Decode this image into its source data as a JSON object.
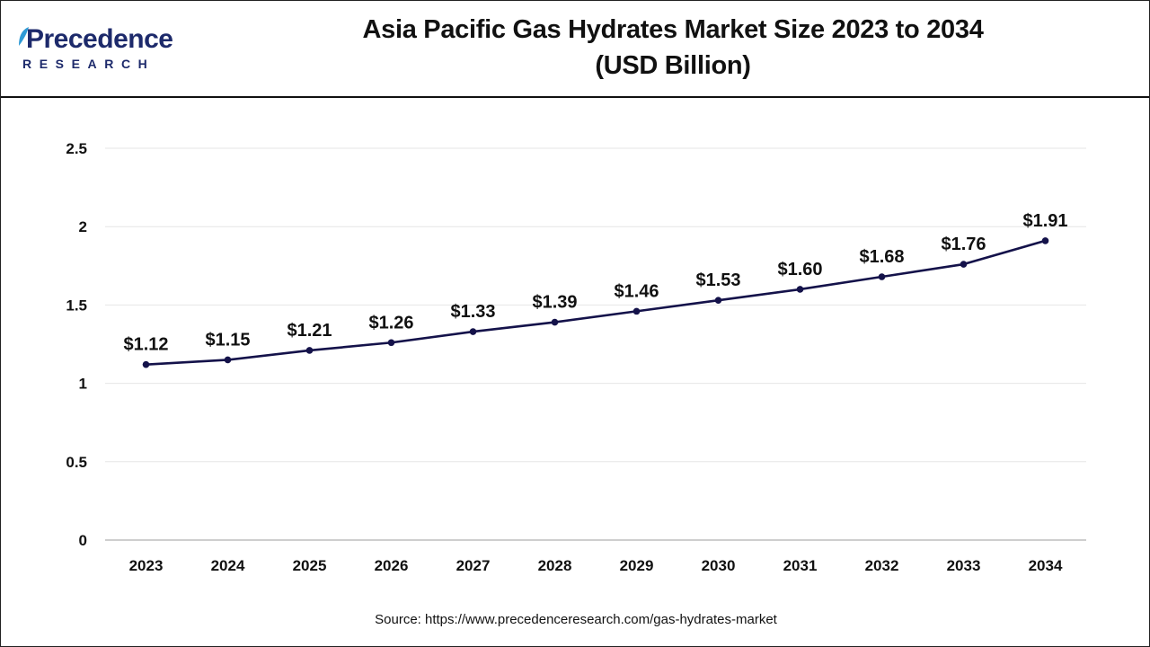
{
  "header": {
    "logo_main": "Precedence",
    "logo_sub": "RESEARCH",
    "title_line1": "Asia Pacific Gas Hydrates Market Size 2023 to 2034",
    "title_line2": "(USD Billion)"
  },
  "source": "Source: https://www.precedenceresearch.com/gas-hydrates-market",
  "colors": {
    "line": "#14124a",
    "brand": "#1d2a6b",
    "leaf": "#2e9ad6"
  },
  "chart_data": {
    "type": "line",
    "x": [
      "2023",
      "2024",
      "2025",
      "2026",
      "2027",
      "2028",
      "2029",
      "2030",
      "2031",
      "2032",
      "2033",
      "2034"
    ],
    "values": [
      1.12,
      1.15,
      1.21,
      1.26,
      1.33,
      1.39,
      1.46,
      1.53,
      1.6,
      1.68,
      1.76,
      1.91
    ],
    "data_labels": [
      "$1.12",
      "$1.15",
      "$1.21",
      "$1.26",
      "$1.33",
      "$1.39",
      "$1.46",
      "$1.53",
      "$1.60",
      "$1.68",
      "$1.76",
      "$1.91"
    ],
    "yticks": [
      "0",
      "0.5",
      "1",
      "1.5",
      "2",
      "2.5"
    ],
    "ylim": [
      0,
      2.5
    ],
    "grid": true,
    "legend": false
  }
}
